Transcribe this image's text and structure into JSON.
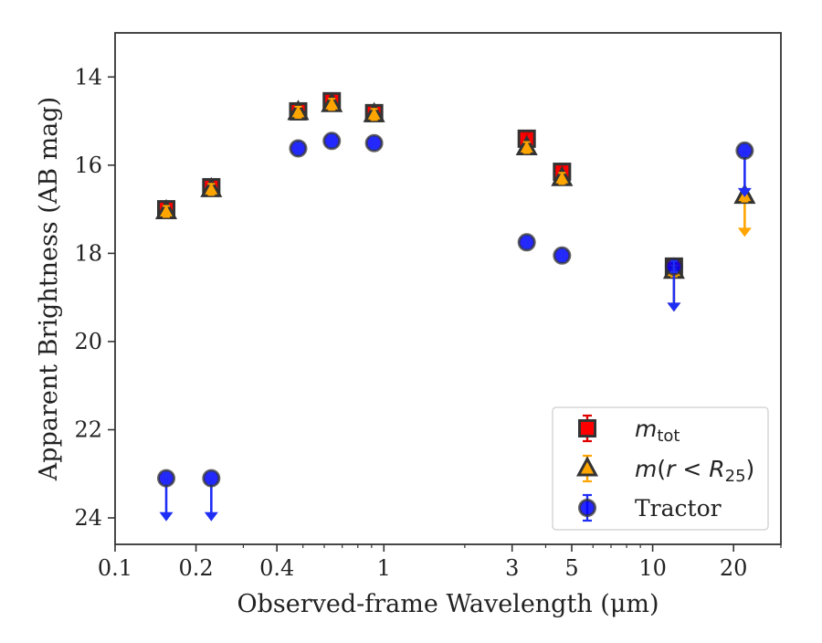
{
  "chart_data": {
    "type": "scatter",
    "xlabel": "Observed-frame Wavelength (μm)",
    "ylabel": "Apparent Brightness (AB mag)",
    "xscale": "log",
    "xlim": [
      0.1,
      30
    ],
    "ylim": [
      24.6,
      13.0
    ],
    "y_inverted": true,
    "x_ticks": [
      {
        "value": 0.1,
        "label": "0.1"
      },
      {
        "value": 0.2,
        "label": "0.2"
      },
      {
        "value": 0.4,
        "label": "0.4"
      },
      {
        "value": 1,
        "label": "1"
      },
      {
        "value": 3,
        "label": "3"
      },
      {
        "value": 5,
        "label": "5"
      },
      {
        "value": 10,
        "label": "10"
      },
      {
        "value": 20,
        "label": "20"
      }
    ],
    "y_ticks": [
      {
        "value": 14,
        "label": "14"
      },
      {
        "value": 16,
        "label": "16"
      },
      {
        "value": 18,
        "label": "18"
      },
      {
        "value": 20,
        "label": "20"
      },
      {
        "value": 22,
        "label": "22"
      },
      {
        "value": 24,
        "label": "24"
      }
    ],
    "legend_position": "bottom-right",
    "series": [
      {
        "key": "mtot",
        "legend_html": "m_tot",
        "marker": "square",
        "color": "#ff0000",
        "errcolor": "#e00000",
        "points": [
          {
            "x": 0.155,
            "y": 17.0
          },
          {
            "x": 0.228,
            "y": 16.5
          },
          {
            "x": 0.48,
            "y": 14.78
          },
          {
            "x": 0.64,
            "y": 14.55
          },
          {
            "x": 0.92,
            "y": 14.82
          },
          {
            "x": 3.4,
            "y": 15.4
          },
          {
            "x": 4.6,
            "y": 16.15
          },
          {
            "x": 12.0,
            "y": 18.3
          }
        ]
      },
      {
        "key": "mr25",
        "marker": "triangle",
        "color": "#ffa500",
        "errcolor": "#ffa500",
        "points": [
          {
            "x": 0.155,
            "y": 17.05
          },
          {
            "x": 0.228,
            "y": 16.55
          },
          {
            "x": 0.48,
            "y": 14.8
          },
          {
            "x": 0.64,
            "y": 14.62
          },
          {
            "x": 0.92,
            "y": 14.85
          },
          {
            "x": 3.4,
            "y": 15.6
          },
          {
            "x": 4.6,
            "y": 16.3
          },
          {
            "x": 12.0,
            "y": 18.4,
            "upper_limit": true,
            "arrow_to": 19.3
          },
          {
            "x": 22.0,
            "y": 16.7,
            "upper_limit": true,
            "arrow_to": 17.6
          }
        ]
      },
      {
        "key": "tractor",
        "name": "Tractor",
        "marker": "circle",
        "color": "#0000ff",
        "errcolor": "#1f2ef5",
        "points": [
          {
            "x": 0.155,
            "y": 23.1,
            "upper_limit": true,
            "arrow_to": 24.05
          },
          {
            "x": 0.228,
            "y": 23.1,
            "upper_limit": true,
            "arrow_to": 24.05
          },
          {
            "x": 0.48,
            "y": 15.62
          },
          {
            "x": 0.64,
            "y": 15.45
          },
          {
            "x": 0.92,
            "y": 15.5
          },
          {
            "x": 3.4,
            "y": 17.75
          },
          {
            "x": 4.6,
            "y": 18.05
          },
          {
            "x": 12.0,
            "y": 18.3,
            "upper_limit": true,
            "arrow_to": 19.3
          },
          {
            "x": 22.0,
            "y": 15.67,
            "upper_limit": true,
            "arrow_to": 16.7
          }
        ]
      }
    ]
  }
}
